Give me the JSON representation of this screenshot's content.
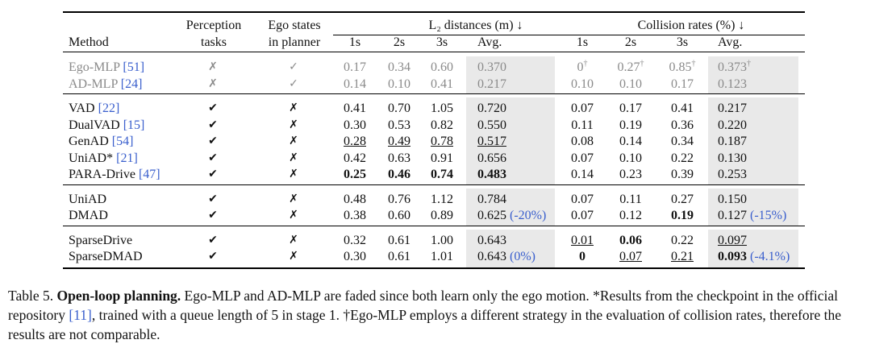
{
  "header": {
    "method": "Method",
    "perception": [
      "Perception",
      "tasks"
    ],
    "ego": [
      "Ego states",
      "in planner"
    ],
    "l2_group": "L₂ distances (m) ↓",
    "col_group": "Collision rates (%) ↓",
    "sub": [
      "1s",
      "2s",
      "3s",
      "Avg.",
      "1s",
      "2s",
      "3s",
      "Avg."
    ]
  },
  "groups": [
    [
      {
        "method": "Ego-MLP",
        "ref": "51",
        "perception": "✗",
        "ego": "✓",
        "faded": true,
        "l2": [
          "0.17",
          "0.34",
          "0.60",
          "0.370"
        ],
        "col": [
          "0",
          "0.27",
          "0.85",
          "0.373"
        ],
        "col_sup": [
          "†",
          "†",
          "†",
          "†"
        ]
      },
      {
        "method": "AD-MLP",
        "ref": "24",
        "perception": "✗",
        "ego": "✓",
        "faded": true,
        "l2": [
          "0.14",
          "0.10",
          "0.41",
          "0.217"
        ],
        "col": [
          "0.10",
          "0.10",
          "0.17",
          "0.123"
        ]
      }
    ],
    [
      {
        "method": "VAD",
        "ref": "22",
        "perception": "✔",
        "ego": "✗",
        "l2": [
          "0.41",
          "0.70",
          "1.05",
          "0.720"
        ],
        "col": [
          "0.07",
          "0.17",
          "0.41",
          "0.217"
        ]
      },
      {
        "method": "DualVAD",
        "ref": "15",
        "perception": "✔",
        "ego": "✗",
        "l2": [
          "0.30",
          "0.53",
          "0.82",
          "0.550"
        ],
        "col": [
          "0.11",
          "0.19",
          "0.36",
          "0.220"
        ]
      },
      {
        "method": "GenAD",
        "ref": "54",
        "perception": "✔",
        "ego": "✗",
        "l2": [
          "0.28",
          "0.49",
          "0.78",
          "0.517"
        ],
        "l2_ul": [
          true,
          true,
          true,
          true
        ],
        "col": [
          "0.08",
          "0.14",
          "0.34",
          "0.187"
        ]
      },
      {
        "method": "UniAD*",
        "ref": "21",
        "perception": "✔",
        "ego": "✗",
        "l2": [
          "0.42",
          "0.63",
          "0.91",
          "0.656"
        ],
        "col": [
          "0.07",
          "0.10",
          "0.22",
          "0.130"
        ]
      },
      {
        "method": "PARA-Drive",
        "ref": "47",
        "perception": "✔",
        "ego": "✗",
        "l2": [
          "0.25",
          "0.46",
          "0.74",
          "0.483"
        ],
        "l2_bold": [
          true,
          true,
          true,
          true
        ],
        "col": [
          "0.14",
          "0.23",
          "0.39",
          "0.253"
        ]
      }
    ],
    [
      {
        "method": "UniAD",
        "perception": "✔",
        "ego": "✗",
        "l2": [
          "0.48",
          "0.76",
          "1.12",
          "0.784"
        ],
        "col": [
          "0.07",
          "0.11",
          "0.27",
          "0.150"
        ]
      },
      {
        "method": "DMAD",
        "perception": "✔",
        "ego": "✗",
        "l2": [
          "0.38",
          "0.60",
          "0.89",
          "0.625"
        ],
        "l2_pct": "(-20%)",
        "col": [
          "0.07",
          "0.12",
          "0.19",
          "0.127"
        ],
        "col_bold": [
          false,
          false,
          true,
          false
        ],
        "col_pct": "(-15%)"
      }
    ],
    [
      {
        "method": "SparseDrive",
        "perception": "✔",
        "ego": "✗",
        "l2": [
          "0.32",
          "0.61",
          "1.00",
          "0.643"
        ],
        "col": [
          "0.01",
          "0.06",
          "0.22",
          "0.097"
        ],
        "col_bold": [
          false,
          true,
          false,
          false
        ],
        "col_ul": [
          true,
          false,
          false,
          true
        ]
      },
      {
        "method": "SparseDMAD",
        "perception": "✔",
        "ego": "✗",
        "l2": [
          "0.30",
          "0.61",
          "1.01",
          "0.643"
        ],
        "l2_pct": "(0%)",
        "col": [
          "0",
          "0.07",
          "0.21",
          "0.093"
        ],
        "col_bold": [
          true,
          false,
          false,
          true
        ],
        "col_ul": [
          false,
          true,
          true,
          false
        ],
        "col_pct": "(-4.1%)"
      }
    ]
  ],
  "caption": {
    "label": "Table 5.",
    "title": "Open-loop planning.",
    "text1": " Ego-MLP and AD-MLP are faded since both learn only the ego motion. *Results from the checkpoint in the official repository ",
    "ref": "[11]",
    "text2": ", trained with a queue length of 5 in stage 1. †Ego-MLP employs a different strategy in the evaluation of collision rates, therefore the results are not comparable."
  }
}
